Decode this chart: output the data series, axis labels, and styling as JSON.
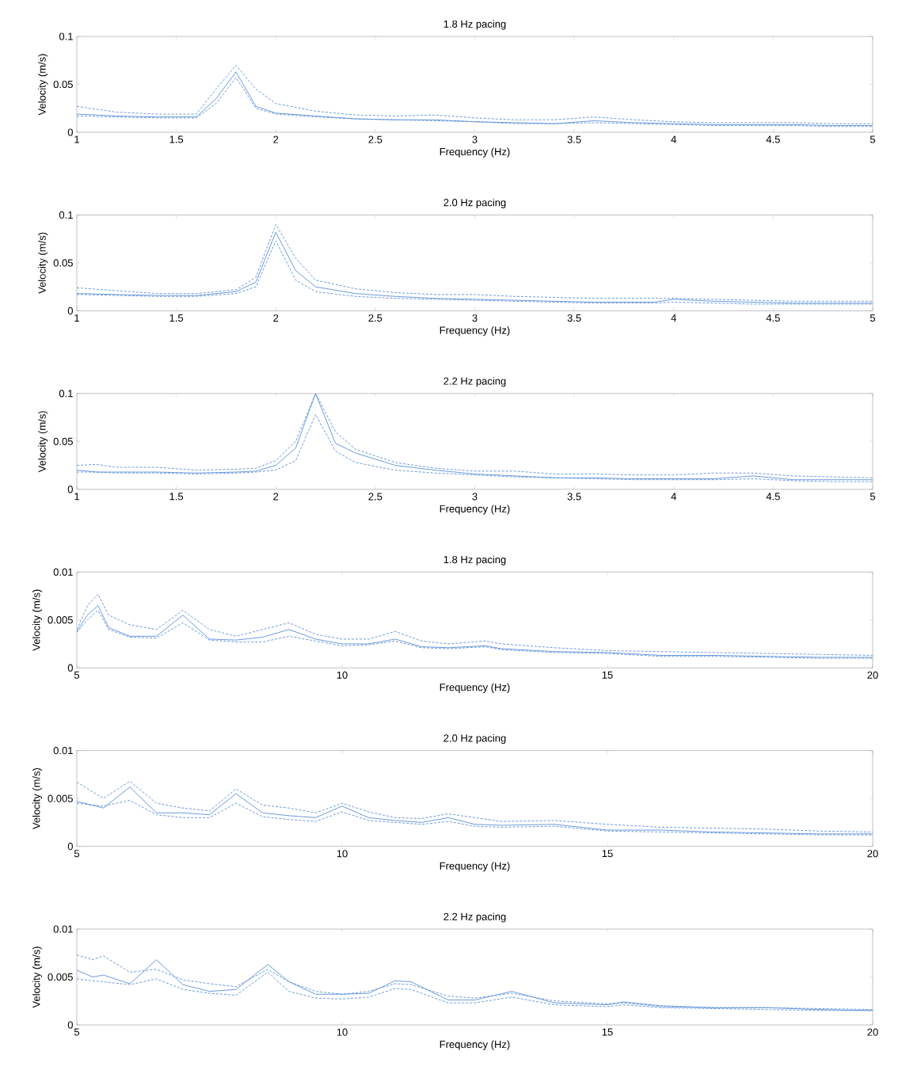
{
  "chart_data": [
    {
      "type": "line",
      "title": "1.8 Hz pacing",
      "xlabel": "Frequency (Hz)",
      "ylabel": "Velocity (m/s)",
      "xlim": [
        1,
        5
      ],
      "ylim": [
        0,
        0.1
      ],
      "xticks": [
        1,
        1.5,
        2,
        2.5,
        3,
        3.5,
        4,
        4.5,
        5
      ],
      "yticks": [
        0,
        0.05,
        0.1
      ],
      "x": [
        1,
        1.2,
        1.4,
        1.6,
        1.7,
        1.8,
        1.9,
        2,
        2.2,
        2.4,
        2.6,
        2.8,
        3,
        3.2,
        3.4,
        3.6,
        3.8,
        4,
        4.2,
        4.4,
        4.6,
        4.8,
        5
      ],
      "series": [
        {
          "color": "#5b8ed8",
          "line_style": "solid",
          "values": [
            0.019,
            0.017,
            0.016,
            0.016,
            0.035,
            0.063,
            0.027,
            0.02,
            0.017,
            0.014,
            0.013,
            0.013,
            0.011,
            0.01,
            0.009,
            0.012,
            0.01,
            0.009,
            0.008,
            0.008,
            0.008,
            0.007,
            0.007
          ]
        },
        {
          "color": "#5b8ed8",
          "line_style": "dashed",
          "values": [
            0.027,
            0.021,
            0.019,
            0.019,
            0.045,
            0.07,
            0.045,
            0.03,
            0.022,
            0.018,
            0.017,
            0.018,
            0.015,
            0.013,
            0.013,
            0.016,
            0.013,
            0.011,
            0.01,
            0.01,
            0.01,
            0.009,
            0.009
          ]
        },
        {
          "color": "#5b8ed8",
          "line_style": "dashed",
          "values": [
            0.017,
            0.016,
            0.015,
            0.015,
            0.03,
            0.057,
            0.025,
            0.019,
            0.016,
            0.014,
            0.013,
            0.012,
            0.011,
            0.009,
            0.009,
            0.01,
            0.009,
            0.008,
            0.007,
            0.007,
            0.007,
            0.006,
            0.006
          ]
        }
      ]
    },
    {
      "type": "line",
      "title": "2.0 Hz pacing",
      "xlabel": "Frequency (Hz)",
      "ylabel": "Velocity (m/s)",
      "xlim": [
        1,
        5
      ],
      "ylim": [
        0,
        0.1
      ],
      "xticks": [
        1,
        1.5,
        2,
        2.5,
        3,
        3.5,
        4,
        4.5,
        5
      ],
      "yticks": [
        0,
        0.05,
        0.1
      ],
      "x": [
        1,
        1.2,
        1.4,
        1.6,
        1.8,
        1.9,
        2,
        2.1,
        2.2,
        2.4,
        2.6,
        2.8,
        3,
        3.2,
        3.4,
        3.6,
        3.8,
        3.9,
        4,
        4.2,
        4.4,
        4.6,
        4.8,
        5
      ],
      "series": [
        {
          "color": "#5b8ed8",
          "line_style": "solid",
          "values": [
            0.018,
            0.017,
            0.016,
            0.016,
            0.02,
            0.03,
            0.082,
            0.042,
            0.025,
            0.018,
            0.015,
            0.013,
            0.012,
            0.011,
            0.01,
            0.009,
            0.009,
            0.009,
            0.012,
            0.01,
            0.009,
            0.008,
            0.008,
            0.008
          ]
        },
        {
          "color": "#5b8ed8",
          "line_style": "dashed",
          "values": [
            0.024,
            0.021,
            0.018,
            0.018,
            0.022,
            0.035,
            0.09,
            0.055,
            0.032,
            0.023,
            0.019,
            0.017,
            0.017,
            0.015,
            0.014,
            0.013,
            0.013,
            0.013,
            0.013,
            0.012,
            0.011,
            0.01,
            0.01,
            0.01
          ]
        },
        {
          "color": "#5b8ed8",
          "line_style": "dashed",
          "values": [
            0.017,
            0.016,
            0.015,
            0.015,
            0.018,
            0.025,
            0.073,
            0.032,
            0.02,
            0.015,
            0.013,
            0.012,
            0.011,
            0.01,
            0.009,
            0.008,
            0.008,
            0.008,
            0.009,
            0.008,
            0.007,
            0.007,
            0.007,
            0.007
          ]
        }
      ]
    },
    {
      "type": "line",
      "title": "2.2 Hz pacing",
      "xlabel": "Frequency (Hz)",
      "ylabel": "Velocity (m/s)",
      "xlim": [
        1,
        5
      ],
      "ylim": [
        0,
        0.1
      ],
      "xticks": [
        1,
        1.5,
        2,
        2.5,
        3,
        3.5,
        4,
        4.5,
        5
      ],
      "yticks": [
        0,
        0.05,
        0.1
      ],
      "x": [
        1,
        1.1,
        1.2,
        1.4,
        1.6,
        1.8,
        1.9,
        2,
        2.1,
        2.2,
        2.3,
        2.4,
        2.6,
        2.8,
        3,
        3.2,
        3.4,
        3.6,
        3.8,
        4,
        4.2,
        4.4,
        4.6,
        4.8,
        5
      ],
      "series": [
        {
          "color": "#5b8ed8",
          "line_style": "solid",
          "values": [
            0.02,
            0.018,
            0.018,
            0.018,
            0.017,
            0.018,
            0.019,
            0.025,
            0.043,
            0.1,
            0.048,
            0.038,
            0.025,
            0.02,
            0.016,
            0.014,
            0.012,
            0.012,
            0.011,
            0.011,
            0.011,
            0.014,
            0.01,
            0.01,
            0.01
          ]
        },
        {
          "color": "#5b8ed8",
          "line_style": "dashed",
          "values": [
            0.025,
            0.026,
            0.023,
            0.023,
            0.02,
            0.021,
            0.022,
            0.03,
            0.05,
            0.1,
            0.06,
            0.042,
            0.028,
            0.022,
            0.019,
            0.019,
            0.016,
            0.016,
            0.015,
            0.015,
            0.017,
            0.017,
            0.014,
            0.013,
            0.012
          ]
        },
        {
          "color": "#5b8ed8",
          "line_style": "dashed",
          "values": [
            0.018,
            0.018,
            0.017,
            0.017,
            0.016,
            0.017,
            0.018,
            0.02,
            0.03,
            0.078,
            0.04,
            0.028,
            0.02,
            0.017,
            0.015,
            0.013,
            0.012,
            0.011,
            0.01,
            0.01,
            0.01,
            0.011,
            0.009,
            0.008,
            0.008
          ]
        }
      ]
    },
    {
      "type": "line",
      "title": "1.8 Hz pacing",
      "xlabel": "Frequency (Hz)",
      "ylabel": "Velocity (m/s)",
      "xlim": [
        5,
        20
      ],
      "ylim": [
        0,
        0.01
      ],
      "xticks": [
        5,
        10,
        15,
        20
      ],
      "yticks": [
        0,
        0.005,
        0.01
      ],
      "x": [
        5,
        5.2,
        5.4,
        5.6,
        6,
        6.5,
        7,
        7.5,
        8,
        8.5,
        9,
        9.5,
        10,
        10.5,
        11,
        11.5,
        12,
        12.7,
        13,
        14,
        15,
        16,
        17,
        18,
        19,
        20
      ],
      "series": [
        {
          "color": "#5b8ed8",
          "line_style": "solid",
          "values": [
            0.0038,
            0.0055,
            0.0065,
            0.0042,
            0.0033,
            0.0033,
            0.0055,
            0.003,
            0.0029,
            0.0032,
            0.004,
            0.003,
            0.0025,
            0.0025,
            0.003,
            0.0022,
            0.0021,
            0.0023,
            0.002,
            0.0017,
            0.0016,
            0.0013,
            0.0013,
            0.0012,
            0.0011,
            0.0011
          ]
        },
        {
          "color": "#5b8ed8",
          "line_style": "dashed",
          "values": [
            0.004,
            0.0065,
            0.0077,
            0.0055,
            0.0045,
            0.004,
            0.006,
            0.004,
            0.0033,
            0.004,
            0.0047,
            0.0035,
            0.003,
            0.003,
            0.0038,
            0.0028,
            0.0025,
            0.0028,
            0.0025,
            0.0021,
            0.0018,
            0.0017,
            0.0016,
            0.0015,
            0.0014,
            0.0013
          ]
        },
        {
          "color": "#5b8ed8",
          "line_style": "dashed",
          "values": [
            0.0037,
            0.005,
            0.006,
            0.004,
            0.0032,
            0.0031,
            0.0047,
            0.0029,
            0.0027,
            0.0027,
            0.0033,
            0.0028,
            0.0023,
            0.0024,
            0.0028,
            0.0021,
            0.002,
            0.0022,
            0.0019,
            0.0016,
            0.0015,
            0.0012,
            0.0012,
            0.0011,
            0.001,
            0.001
          ]
        }
      ]
    },
    {
      "type": "line",
      "title": "2.0 Hz pacing",
      "xlabel": "Frequency (Hz)",
      "ylabel": "Velocity (m/s)",
      "xlim": [
        5,
        20
      ],
      "ylim": [
        0,
        0.01
      ],
      "xticks": [
        5,
        10,
        15,
        20
      ],
      "yticks": [
        0,
        0.005,
        0.01
      ],
      "x": [
        5,
        5.5,
        6,
        6.5,
        7,
        7.5,
        8,
        8.5,
        9,
        9.5,
        10,
        10.5,
        11,
        11.5,
        12,
        12.5,
        13,
        14,
        15,
        16,
        17,
        18,
        19,
        20
      ],
      "series": [
        {
          "color": "#5b8ed8",
          "line_style": "solid",
          "values": [
            0.0047,
            0.004,
            0.0062,
            0.0035,
            0.0035,
            0.0033,
            0.0055,
            0.0035,
            0.0032,
            0.003,
            0.0042,
            0.003,
            0.0027,
            0.0025,
            0.003,
            0.0023,
            0.0022,
            0.0023,
            0.0017,
            0.0017,
            0.0015,
            0.0014,
            0.0013,
            0.0013
          ]
        },
        {
          "color": "#5b8ed8",
          "line_style": "dashed",
          "values": [
            0.0067,
            0.005,
            0.0068,
            0.0045,
            0.004,
            0.0037,
            0.006,
            0.0043,
            0.004,
            0.0035,
            0.0045,
            0.0036,
            0.003,
            0.0029,
            0.0034,
            0.003,
            0.0026,
            0.0027,
            0.0023,
            0.002,
            0.0019,
            0.0018,
            0.0016,
            0.0015
          ]
        },
        {
          "color": "#5b8ed8",
          "line_style": "dashed",
          "values": [
            0.0045,
            0.0042,
            0.0048,
            0.0033,
            0.003,
            0.003,
            0.0045,
            0.0031,
            0.0028,
            0.0026,
            0.0036,
            0.0027,
            0.0025,
            0.0023,
            0.0026,
            0.0021,
            0.002,
            0.0021,
            0.0016,
            0.0015,
            0.0014,
            0.0013,
            0.0012,
            0.0012
          ]
        }
      ]
    },
    {
      "type": "line",
      "title": "2.2 Hz pacing",
      "xlabel": "Frequency (Hz)",
      "ylabel": "Velocity (m/s)",
      "xlim": [
        5,
        20
      ],
      "ylim": [
        0,
        0.01
      ],
      "xticks": [
        5,
        10,
        15,
        20
      ],
      "yticks": [
        0,
        0.005,
        0.01
      ],
      "x": [
        5,
        5.3,
        5.5,
        6,
        6.5,
        7,
        7.5,
        8,
        8.6,
        9,
        9.5,
        10,
        10.5,
        11,
        11.3,
        12,
        12.5,
        13.2,
        14,
        15,
        15.3,
        16,
        17,
        18,
        19,
        20
      ],
      "series": [
        {
          "color": "#5b8ed8",
          "line_style": "solid",
          "values": [
            0.0057,
            0.005,
            0.0052,
            0.0043,
            0.0068,
            0.0042,
            0.0035,
            0.0037,
            0.0063,
            0.0045,
            0.0032,
            0.0032,
            0.0033,
            0.0046,
            0.0045,
            0.0026,
            0.0026,
            0.0035,
            0.0023,
            0.0021,
            0.0024,
            0.002,
            0.0018,
            0.0018,
            0.0016,
            0.0015
          ]
        },
        {
          "color": "#5b8ed8",
          "line_style": "dashed",
          "values": [
            0.0073,
            0.0068,
            0.0072,
            0.0055,
            0.0058,
            0.0047,
            0.0043,
            0.004,
            0.0058,
            0.0045,
            0.0035,
            0.0032,
            0.0035,
            0.0043,
            0.0042,
            0.003,
            0.0028,
            0.0033,
            0.0025,
            0.0022,
            0.0023,
            0.0019,
            0.0018,
            0.0018,
            0.0017,
            0.0016
          ]
        },
        {
          "color": "#5b8ed8",
          "line_style": "dashed",
          "values": [
            0.0048,
            0.0046,
            0.0045,
            0.0042,
            0.0048,
            0.0037,
            0.0033,
            0.0031,
            0.0055,
            0.0035,
            0.0028,
            0.0027,
            0.0029,
            0.0038,
            0.0037,
            0.0023,
            0.0023,
            0.0029,
            0.0021,
            0.0019,
            0.0021,
            0.0018,
            0.0017,
            0.0016,
            0.0015,
            0.0015
          ]
        }
      ]
    }
  ]
}
